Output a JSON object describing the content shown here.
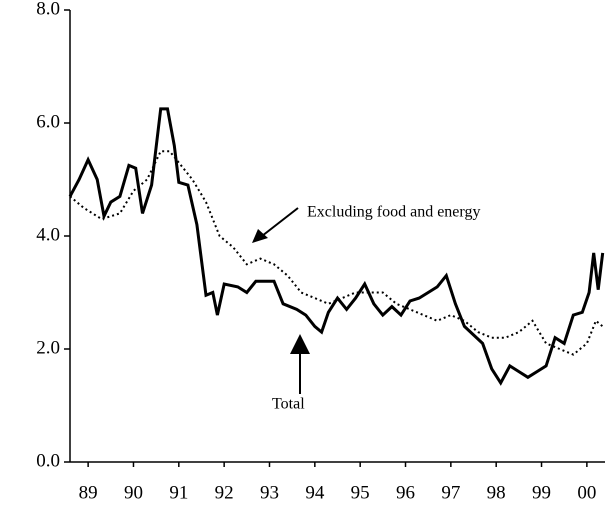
{
  "chart_data": {
    "type": "line",
    "annotations": [
      "Excluding food and energy",
      "Total"
    ],
    "xlim": [
      88.6,
      100.4
    ],
    "xticks": [
      89,
      90,
      91,
      92,
      93,
      94,
      95,
      96,
      97,
      98,
      99,
      {
        "value": 100,
        "label": "00"
      }
    ],
    "ylim": [
      0,
      8
    ],
    "yticks": [
      {
        "value": 0,
        "label": "0.0"
      },
      {
        "value": 2,
        "label": "2.0"
      },
      {
        "value": 4,
        "label": "4.0"
      },
      {
        "value": 6,
        "label": "6.0"
      },
      {
        "value": 8,
        "label": "8.0"
      }
    ],
    "series": [
      {
        "name": "Total",
        "color": "#000000",
        "style": "solid",
        "x": [
          88.6,
          88.8,
          89.0,
          89.2,
          89.35,
          89.5,
          89.7,
          89.9,
          90.05,
          90.2,
          90.4,
          90.6,
          90.75,
          90.9,
          91.0,
          91.2,
          91.4,
          91.6,
          91.75,
          91.85,
          92.0,
          92.3,
          92.5,
          92.7,
          92.9,
          93.1,
          93.3,
          93.6,
          93.8,
          94.0,
          94.15,
          94.3,
          94.5,
          94.7,
          94.9,
          95.1,
          95.3,
          95.5,
          95.7,
          95.9,
          96.1,
          96.3,
          96.5,
          96.7,
          96.9,
          97.1,
          97.3,
          97.5,
          97.7,
          97.9,
          98.1,
          98.3,
          98.5,
          98.7,
          98.9,
          99.1,
          99.3,
          99.5,
          99.7,
          99.9,
          100.05,
          100.15,
          100.25,
          100.35
        ],
        "values": [
          4.7,
          5.0,
          5.35,
          5.0,
          4.35,
          4.6,
          4.7,
          5.25,
          5.2,
          4.4,
          4.9,
          6.25,
          6.25,
          5.6,
          4.95,
          4.9,
          4.2,
          2.95,
          3.0,
          2.6,
          3.15,
          3.1,
          3.0,
          3.2,
          3.2,
          3.2,
          2.8,
          2.7,
          2.6,
          2.4,
          2.3,
          2.65,
          2.9,
          2.7,
          2.9,
          3.15,
          2.8,
          2.6,
          2.75,
          2.6,
          2.85,
          2.9,
          3.0,
          3.1,
          3.3,
          2.8,
          2.4,
          2.25,
          2.1,
          1.65,
          1.4,
          1.7,
          1.6,
          1.5,
          1.6,
          1.7,
          2.2,
          2.1,
          2.6,
          2.65,
          3.0,
          3.7,
          3.05,
          3.7
        ]
      },
      {
        "name": "Excluding food and energy",
        "color": "#000000",
        "style": "dotted",
        "x": [
          88.6,
          88.9,
          89.3,
          89.7,
          90.0,
          90.3,
          90.6,
          90.8,
          91.0,
          91.3,
          91.6,
          91.9,
          92.2,
          92.5,
          92.8,
          93.1,
          93.4,
          93.7,
          94.0,
          94.3,
          94.6,
          94.9,
          95.2,
          95.5,
          95.8,
          96.1,
          96.4,
          96.7,
          97.0,
          97.3,
          97.6,
          97.9,
          98.2,
          98.5,
          98.8,
          99.1,
          99.4,
          99.7,
          100.0,
          100.2,
          100.35
        ],
        "values": [
          4.7,
          4.5,
          4.3,
          4.4,
          4.8,
          5.0,
          5.5,
          5.5,
          5.3,
          5.0,
          4.6,
          4.0,
          3.8,
          3.5,
          3.6,
          3.5,
          3.3,
          3.0,
          2.9,
          2.8,
          2.9,
          3.0,
          3.0,
          3.0,
          2.8,
          2.7,
          2.6,
          2.5,
          2.6,
          2.5,
          2.3,
          2.2,
          2.2,
          2.3,
          2.5,
          2.1,
          2.0,
          1.9,
          2.1,
          2.5,
          2.4
        ]
      }
    ]
  }
}
